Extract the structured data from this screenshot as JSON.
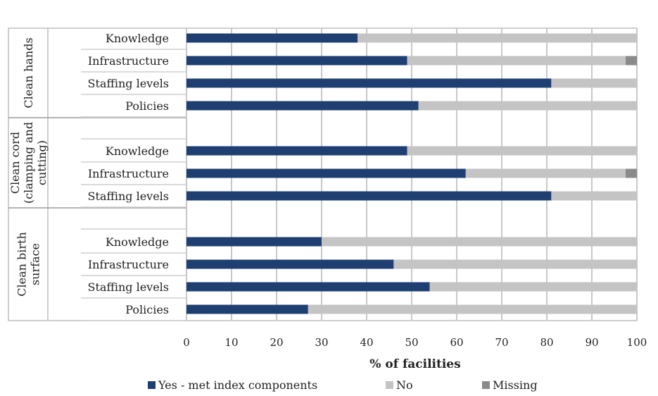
{
  "chart_data": {
    "type": "bar",
    "orientation": "horizontal",
    "stacked": true,
    "xlabel": "% of facilities",
    "xlim": [
      0,
      100
    ],
    "xticks": [
      "0",
      "10",
      "20",
      "30",
      "40",
      "50",
      "60",
      "70",
      "80",
      "90",
      "100"
    ],
    "grid": true,
    "legend_position": "bottom",
    "colors": {
      "yes": "#1f3f73",
      "no": "#c4c4c4",
      "missing": "#8a8a8a"
    },
    "series": [
      {
        "name": "Yes - met index components",
        "key": "yes"
      },
      {
        "name": "No",
        "key": "no"
      },
      {
        "name": "Missing",
        "key": "missing"
      }
    ],
    "groups": [
      {
        "label_lines": [
          "Clean hands"
        ],
        "rows": [
          {
            "category": "Knowledge",
            "yes": 38,
            "no": 62,
            "missing": 0
          },
          {
            "category": "Infrastructure",
            "yes": 49,
            "no": 48.5,
            "missing": 2.5
          },
          {
            "category": "Staffing levels",
            "yes": 81,
            "no": 19,
            "missing": 0
          },
          {
            "category": "Policies",
            "yes": 51.5,
            "no": 48.5,
            "missing": 0
          }
        ]
      },
      {
        "label_lines": [
          "Clean cord",
          "(clamping and",
          "cutting)"
        ],
        "rows": [
          {
            "category": "Knowledge",
            "yes": 49,
            "no": 51,
            "missing": 0
          },
          {
            "category": "Infrastructure",
            "yes": 62,
            "no": 35.5,
            "missing": 2.5
          },
          {
            "category": "Staffing levels",
            "yes": 81,
            "no": 19,
            "missing": 0
          }
        ]
      },
      {
        "label_lines": [
          "Clean birth",
          "surface"
        ],
        "rows": [
          {
            "category": "Knowledge",
            "yes": 30,
            "no": 70,
            "missing": 0
          },
          {
            "category": "Infrastructure",
            "yes": 46,
            "no": 54,
            "missing": 0
          },
          {
            "category": "Staffing levels",
            "yes": 54,
            "no": 46,
            "missing": 0
          },
          {
            "category": "Policies",
            "yes": 27,
            "no": 73,
            "missing": 0
          }
        ]
      }
    ]
  }
}
